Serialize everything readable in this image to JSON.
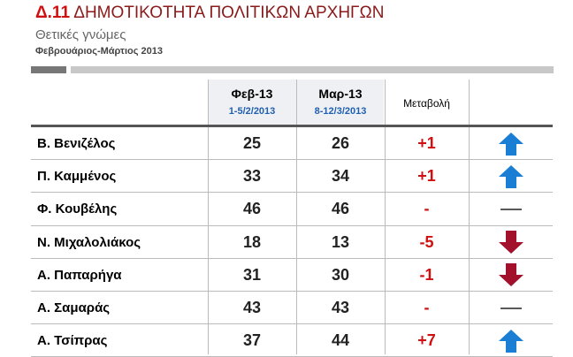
{
  "header": {
    "code": "Δ.11",
    "title": "ΔΗΜΟΤΙΚΟΤΗΤΑ ΠΟΛΙΤΙΚΩΝ ΑΡΧΗΓΩΝ",
    "subtitle": "Θετικές γνώμες",
    "period": "Φεβρουάριος-Μάρτιος 2013"
  },
  "table": {
    "columns": [
      {
        "label": "Φεβ-13",
        "dates": "1-5/2/2013"
      },
      {
        "label": "Μαρ-13",
        "dates": "8-12/3/2013"
      },
      {
        "label": "Μεταβολή"
      }
    ],
    "rows": [
      {
        "name": "Β. Βενιζέλος",
        "feb": 25,
        "mar": 26,
        "change": "+1",
        "trend": "up"
      },
      {
        "name": "Π. Καμμένος",
        "feb": 33,
        "mar": 34,
        "change": "+1",
        "trend": "up"
      },
      {
        "name": "Φ. Κουβέλης",
        "feb": 46,
        "mar": 46,
        "change": "-",
        "trend": "flat"
      },
      {
        "name": "Ν. Μιχαλολιάκος",
        "feb": 18,
        "mar": 13,
        "change": "-5",
        "trend": "down"
      },
      {
        "name": "Α. Παπαρήγα",
        "feb": 31,
        "mar": 30,
        "change": "-1",
        "trend": "down"
      },
      {
        "name": "Α. Σαμαράς",
        "feb": 43,
        "mar": 43,
        "change": "-",
        "trend": "flat"
      },
      {
        "name": "Α. Τσίπρας",
        "feb": 37,
        "mar": 44,
        "change": "+7",
        "trend": "up"
      }
    ]
  }
}
